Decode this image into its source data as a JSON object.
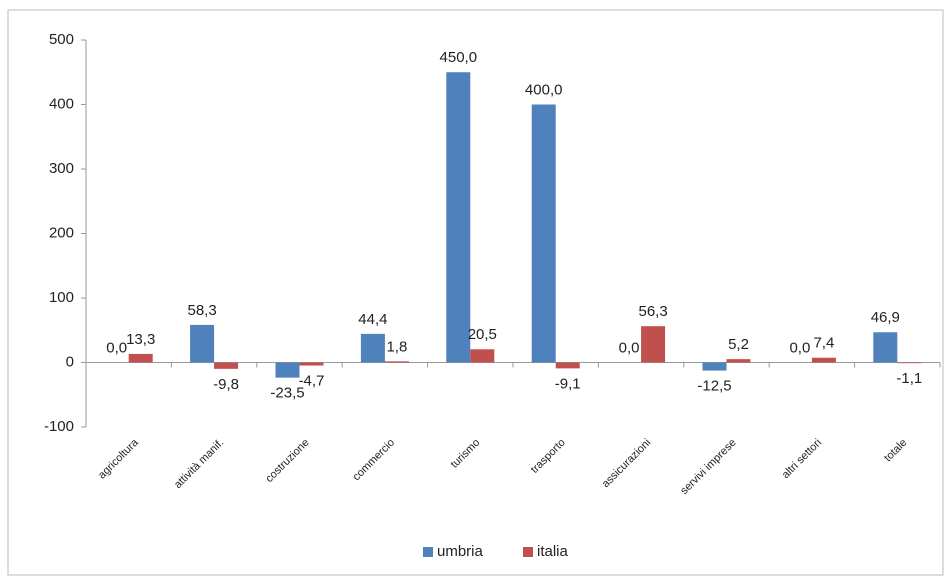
{
  "chart_data": {
    "type": "bar",
    "categories": [
      "agricoltura",
      "attività manif.",
      "costruzione",
      "commercio",
      "turismo",
      "trasporto",
      "assicurazioni",
      "servivi imprese",
      "altri settori",
      "totale"
    ],
    "series": [
      {
        "name": "umbria",
        "color": "#4f81bd",
        "values": [
          0,
          58.3,
          -23.5,
          44.4,
          450,
          400,
          0,
          -12.5,
          0,
          46.9
        ],
        "value_labels": [
          "0,0",
          "58,3",
          "-23,5",
          "44,4",
          "450,0",
          "400,0",
          "0,0",
          "-12,5",
          "0,0",
          "46,9"
        ]
      },
      {
        "name": "italia",
        "color": "#c0504d",
        "values": [
          13.3,
          -9.8,
          -4.7,
          1.8,
          20.5,
          -9.1,
          56.3,
          5.2,
          7.4,
          -1.1
        ],
        "value_labels": [
          "13,3",
          "-9,8",
          "-4,7",
          "1,8",
          "20,5",
          "-9,1",
          "56,3",
          "5,2",
          "7,4",
          "-1,1"
        ]
      }
    ],
    "ylim": [
      -100,
      500
    ],
    "yticks": [
      -100,
      0,
      100,
      200,
      300,
      400,
      500
    ],
    "grid": false,
    "legend": "bottom"
  }
}
